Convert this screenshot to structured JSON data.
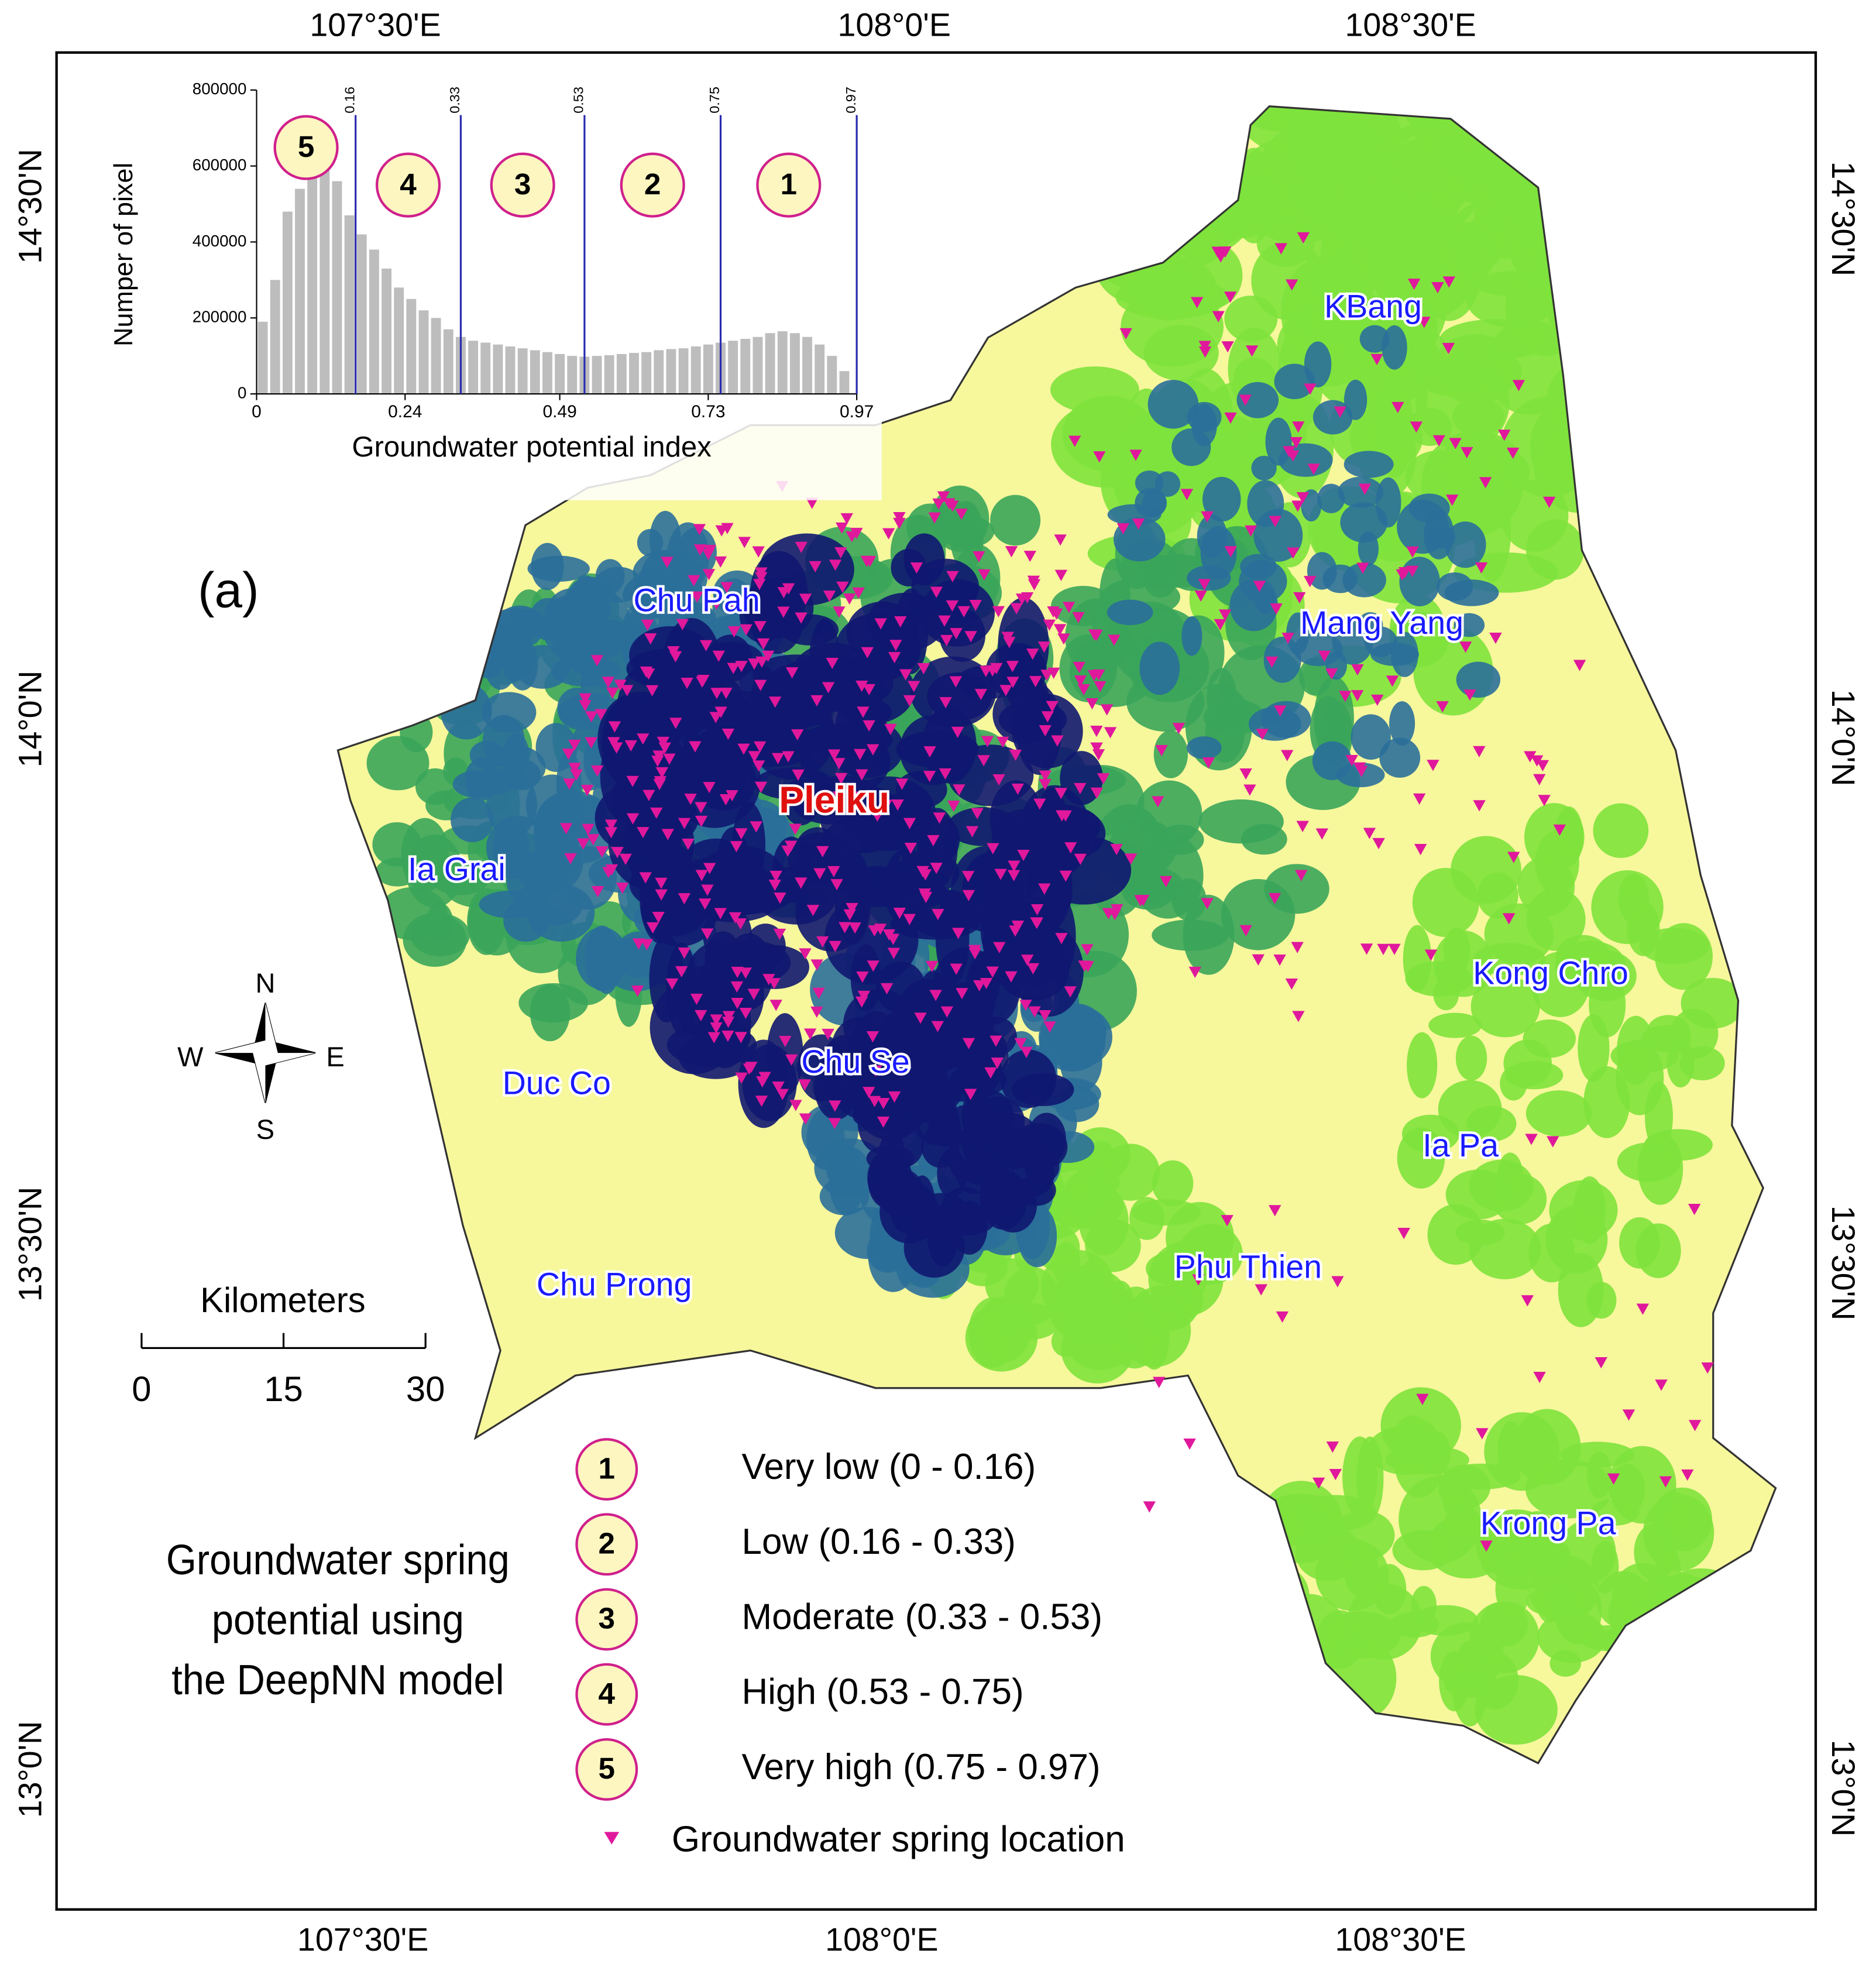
{
  "map": {
    "title": [
      "Groundwater spring",
      "potential using",
      "the DeepNN model"
    ],
    "panel_label": "(a)",
    "longitude_labels": [
      "107°30'E",
      "108°0'E",
      "108°30'E"
    ],
    "latitude_labels": [
      "14°30'N",
      "14°0'N",
      "13°30'N",
      "13°0'N"
    ],
    "places": [
      "KBang",
      "Chu Pah",
      "Mang Yang",
      "Ia Grai",
      "Kong Chro",
      "Duc Co",
      "Chu Se",
      "Ia Pa",
      "Chu Prong",
      "Phu Thien",
      "Krong Pa"
    ],
    "capital": "Pleiku",
    "compass": {
      "north": "N",
      "south": "S",
      "east": "E",
      "west": "W"
    },
    "scale_bar": {
      "title": "Kilometers",
      "ticks": [
        0,
        15,
        30
      ]
    },
    "legend": {
      "classes": [
        {
          "number": "1",
          "label": "Very low (0 - 0.16)",
          "color": "#f7f79c"
        },
        {
          "number": "2",
          "label": "Low (0.16 - 0.33)",
          "color": "#7ee23c"
        },
        {
          "number": "3",
          "label": "Moderate (0.33 - 0.53)",
          "color": "#3aa55a"
        },
        {
          "number": "4",
          "label": "High (0.53 - 0.75)",
          "color": "#2a6f9a"
        },
        {
          "number": "5",
          "label": "Very high (0.75 - 0.97)",
          "color": "#0f1770"
        }
      ],
      "spring_label": "Groundwater spring location",
      "spring_color": "#e0189c"
    }
  },
  "chart_data": {
    "type": "histogram",
    "x_label": "Groundwater potential index",
    "y_label": "Numper of pixel",
    "color": "#bdbdbd",
    "bins": [
      0,
      0.02,
      0.04,
      0.06,
      0.08,
      0.1,
      0.12,
      0.14,
      0.16,
      0.18,
      0.2,
      0.22,
      0.24,
      0.26,
      0.28,
      0.3,
      0.32,
      0.34,
      0.36,
      0.38,
      0.4,
      0.42,
      0.44,
      0.46,
      0.48,
      0.5,
      0.52,
      0.54,
      0.56,
      0.58,
      0.6,
      0.62,
      0.64,
      0.66,
      0.68,
      0.7,
      0.72,
      0.74,
      0.76,
      0.78,
      0.8,
      0.82,
      0.84,
      0.86,
      0.88,
      0.9,
      0.92,
      0.94,
      0.96
    ],
    "values": [
      190000,
      300000,
      480000,
      540000,
      640000,
      610000,
      560000,
      470000,
      420000,
      380000,
      330000,
      280000,
      250000,
      220000,
      200000,
      170000,
      150000,
      140000,
      135000,
      130000,
      125000,
      120000,
      115000,
      110000,
      105000,
      100000,
      98000,
      100000,
      102000,
      105000,
      108000,
      110000,
      115000,
      118000,
      120000,
      125000,
      130000,
      135000,
      140000,
      145000,
      150000,
      160000,
      165000,
      160000,
      150000,
      130000,
      100000,
      60000
    ],
    "xlim": [
      0,
      0.97
    ],
    "ylim": [
      0,
      800000
    ],
    "xticks": [
      0,
      0.24,
      0.49,
      0.73,
      0.97
    ],
    "yticks": [
      0,
      200000,
      400000,
      600000,
      800000
    ],
    "class_breaks": [
      0.16,
      0.33,
      0.53,
      0.75,
      0.97
    ],
    "break_color": "#2b2bb0",
    "class_labels": [
      "5",
      "4",
      "3",
      "2",
      "1"
    ]
  }
}
